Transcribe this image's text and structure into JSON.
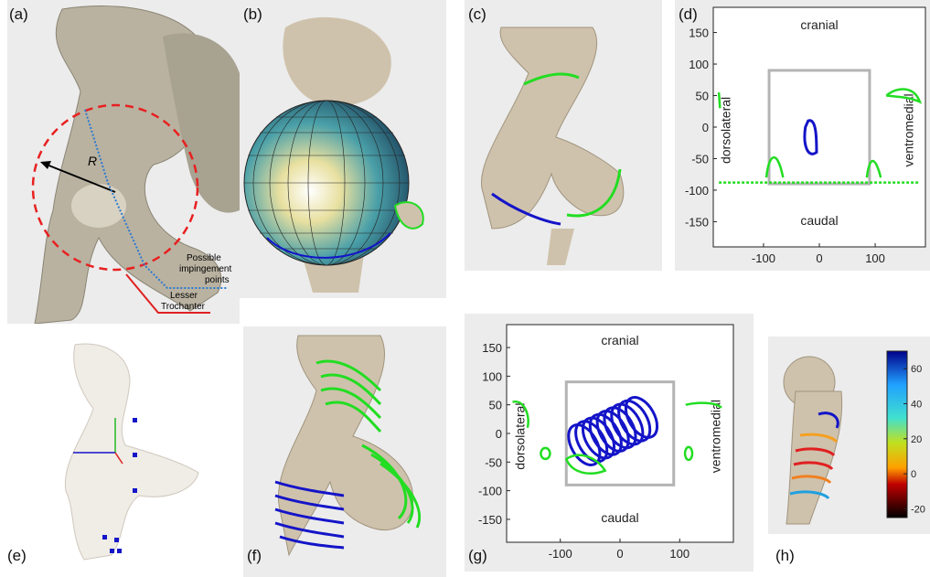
{
  "panels": {
    "a": {
      "label": "(a)",
      "radius_symbol": "R",
      "impingement": "Possible\nimpingement\npoints",
      "impingement_l1": "Possible",
      "impingement_l2": "impingement",
      "impingement_l3": "points",
      "trochanter_l1": "Lesser",
      "trochanter_l2": "Trochanter"
    },
    "b": {
      "label": "(b)"
    },
    "c": {
      "label": "(c)"
    },
    "d": {
      "label": "(d)"
    },
    "e": {
      "label": "(e)"
    },
    "f": {
      "label": "(f)"
    },
    "g": {
      "label": "(g)"
    },
    "h": {
      "label": "(h)"
    }
  },
  "colors": {
    "panel_bg": "#ececec",
    "bone": "#cfc2ac",
    "green": "#22dd22",
    "blue": "#1414c8",
    "red": "#e02020",
    "gray_box": "#b4b4b4"
  },
  "plot_d": {
    "top": "cranial",
    "bottom": "caudal",
    "left": "dorsolateral",
    "right": "ventromedial",
    "yticks": [
      "150",
      "100",
      "50",
      "0",
      "-50",
      "-100",
      "-150"
    ],
    "xticks": [
      "-100",
      "0",
      "100"
    ]
  },
  "plot_g": {
    "top": "cranial",
    "bottom": "caudal",
    "left": "dorsolateral",
    "right": "ventromedial",
    "yticks": [
      "150",
      "100",
      "50",
      "0",
      "-50",
      "-100",
      "-150"
    ],
    "xticks": [
      "-100",
      "0",
      "100"
    ]
  },
  "colorbar_h": {
    "ticks": [
      "60",
      "40",
      "20",
      "0",
      "-20"
    ]
  }
}
